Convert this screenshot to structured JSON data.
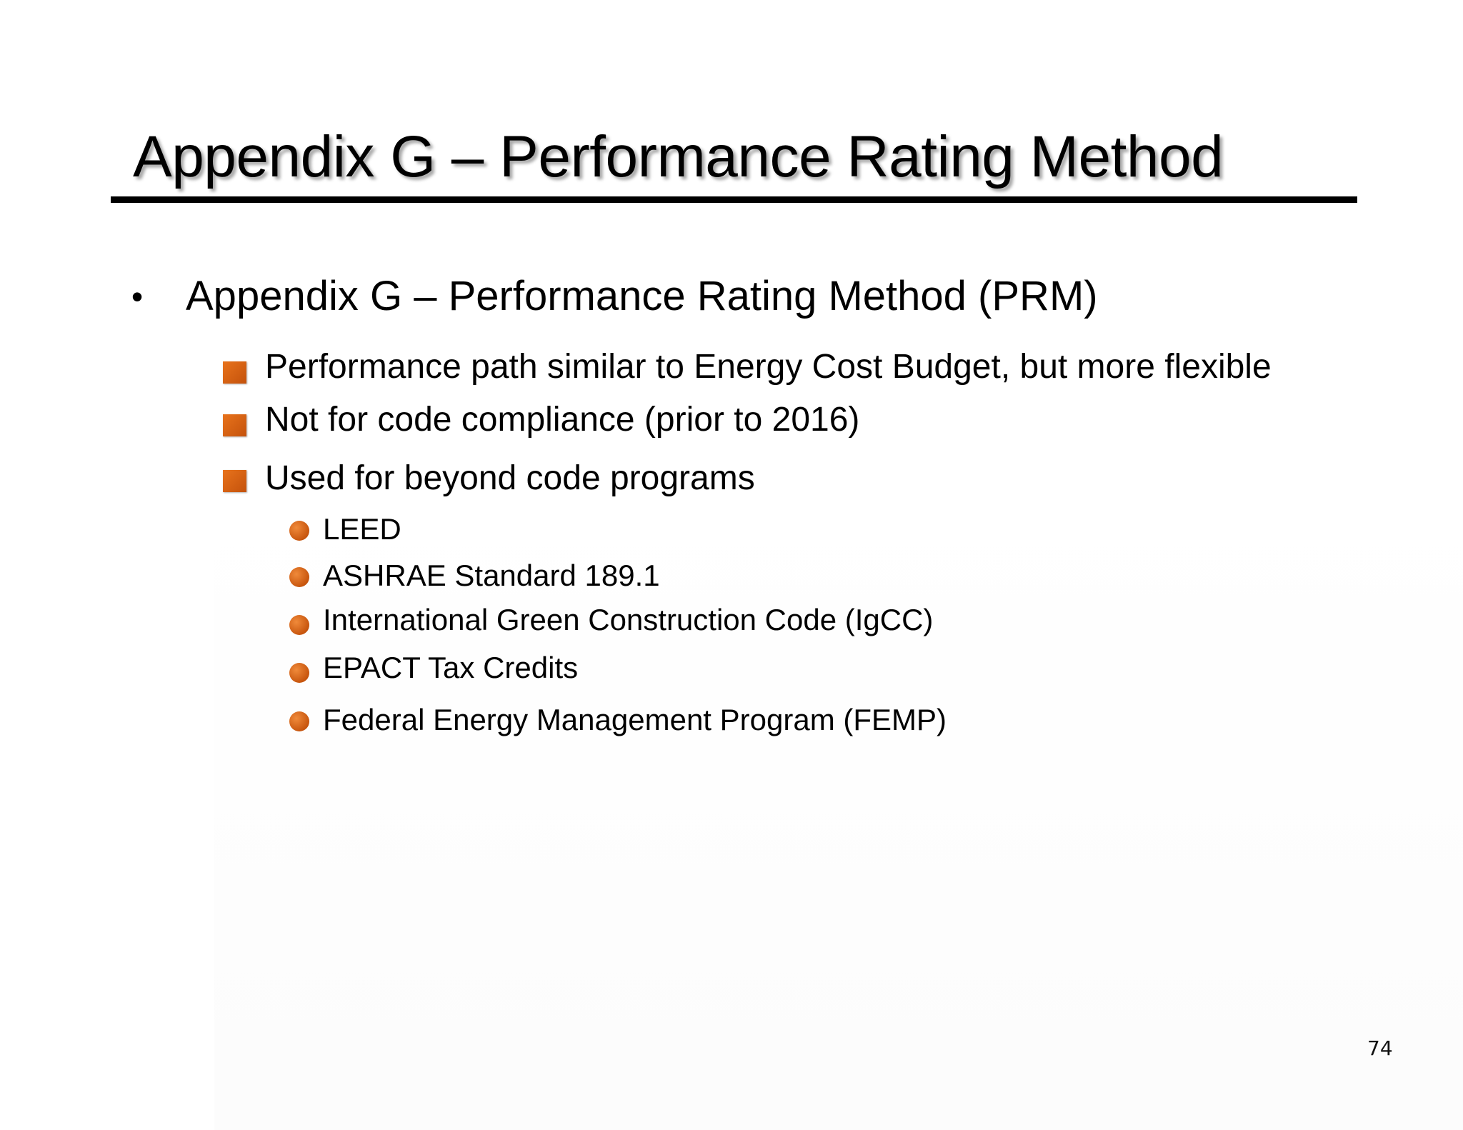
{
  "slide": {
    "title": "Appendix G – Performance Rating Method",
    "bullet_symbol": "•",
    "main_bullet": "Appendix G – Performance Rating Method (PRM)",
    "sub_bullets": [
      "Performance path similar to Energy Cost Budget, but more flexible",
      "Not for code compliance (prior to 2016)",
      "Used for beyond code programs"
    ],
    "programs": [
      "LEED",
      "ASHRAE Standard 189.1",
      "International Green Construction Code (IgCC)",
      "EPACT Tax Credits",
      "Federal Energy Management Program (FEMP)"
    ],
    "page_number": "74"
  },
  "colors": {
    "bullet_orange": "#d8620f",
    "rule": "#000000"
  },
  "icons": {
    "square_bullet": "orange-square-bullet-icon",
    "round_bullet": "orange-circle-bullet-icon"
  }
}
